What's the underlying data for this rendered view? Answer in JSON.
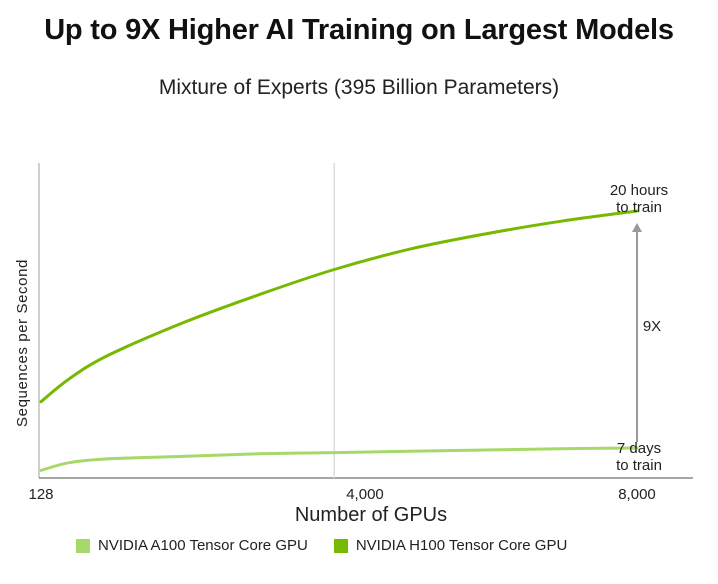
{
  "title": "Up to 9X Higher AI Training on Largest Models",
  "chart_data": {
    "type": "line",
    "title": "Up to 9X Higher AI Training on Largest Models",
    "subtitle": "Mixture of Experts (395 Billion Parameters)",
    "xlabel": "Number of GPUs",
    "ylabel": "Sequences per Second",
    "x_ticks": [
      "128",
      "4,000",
      "8,000"
    ],
    "x": [
      128,
      500,
      1000,
      2000,
      3000,
      4000,
      5000,
      6000,
      7000,
      8000
    ],
    "ylim": [
      0,
      10.5
    ],
    "grid": false,
    "reference_line_x": 4000,
    "legend_position": "bottom",
    "series": [
      {
        "name": "NVIDIA A100 Tensor Core GPU",
        "color": "#a6d96a",
        "values": [
          0.3,
          0.6,
          0.75,
          0.85,
          0.95,
          1.0,
          1.05,
          1.1,
          1.15,
          1.18
        ]
      },
      {
        "name": "NVIDIA H100 Tensor Core GPU",
        "color": "#76b900",
        "values": [
          3.0,
          3.9,
          4.8,
          6.1,
          7.2,
          8.2,
          9.0,
          9.6,
          10.1,
          10.5
        ]
      }
    ],
    "annotations": [
      {
        "text_line1": "20 hours",
        "text_line2": "to train",
        "series": "NVIDIA H100 Tensor Core GPU"
      },
      {
        "text_line1": "7 days",
        "text_line2": "to train",
        "series": "NVIDIA A100 Tensor Core GPU"
      },
      {
        "text": "9X"
      }
    ]
  }
}
